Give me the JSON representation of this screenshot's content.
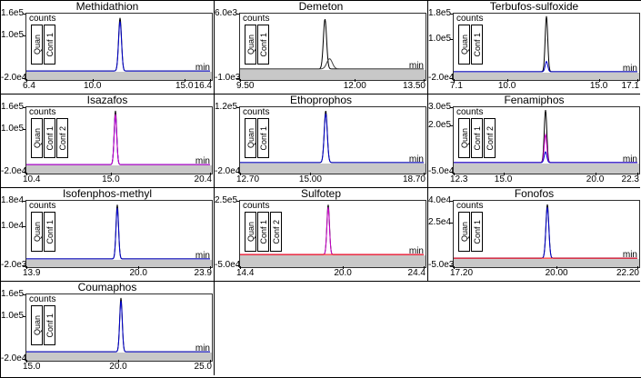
{
  "chart_data": [
    {
      "type": "line",
      "title": "Methidathion",
      "ylabel": "counts",
      "xlabel": "min",
      "x_range": [
        6.4,
        16.4
      ],
      "y_range": [
        -20000,
        160000
      ],
      "y_ticks": [
        {
          "label": "1.6e5",
          "value": 160000
        },
        {
          "label": "1.0e5",
          "value": 100000
        },
        {
          "label": "-2.0e4",
          "value": -20000
        }
      ],
      "x_ticks": [
        {
          "label": "6.4",
          "value": 6.4
        },
        {
          "label": "10.0",
          "value": 10.0
        },
        {
          "label": "15.0",
          "value": 15.0
        },
        {
          "label": "16.4",
          "value": 16.4
        }
      ],
      "signal_labels": [
        "Quan",
        "Conf 1"
      ],
      "traces": [
        {
          "name": "quan",
          "color": "#000000",
          "peak_rt": 11.5,
          "peak_height": 148000,
          "sigma": 0.08
        },
        {
          "name": "conf1",
          "color": "#0000cd",
          "peak_rt": 11.5,
          "peak_height": 138000,
          "sigma": 0.08
        }
      ]
    },
    {
      "type": "line",
      "title": "Demeton",
      "ylabel": "counts",
      "xlabel": "min",
      "x_range": [
        9.5,
        13.5
      ],
      "y_range": [
        -1000,
        6000
      ],
      "y_ticks": [
        {
          "label": "6.0e3",
          "value": 6000
        },
        {
          "label": "-1.0e3",
          "value": -1000
        }
      ],
      "x_ticks": [
        {
          "label": "9.50",
          "value": 9.5
        },
        {
          "label": "12.00",
          "value": 12.0
        },
        {
          "label": "13.50",
          "value": 13.5
        }
      ],
      "signal_labels": [
        "Quan",
        "Conf 1"
      ],
      "traces": [
        {
          "name": "quan",
          "color": "#000000",
          "peak_rt": 11.35,
          "peak_height": 5400,
          "sigma": 0.035
        },
        {
          "name": "conf1",
          "color": "#404040",
          "peak_rt": 11.45,
          "peak_height": 1100,
          "sigma": 0.06
        }
      ]
    },
    {
      "type": "line",
      "title": "Terbufos-sulfoxide",
      "ylabel": "counts",
      "xlabel": "min",
      "x_range": [
        7.1,
        17.1
      ],
      "y_range": [
        -20000,
        180000
      ],
      "y_ticks": [
        {
          "label": "1.8e5",
          "value": 180000
        },
        {
          "label": "1.0e5",
          "value": 100000
        },
        {
          "label": "-2.0e4",
          "value": -20000
        }
      ],
      "x_ticks": [
        {
          "label": "7.1",
          "value": 7.1
        },
        {
          "label": "10.0",
          "value": 10.0
        },
        {
          "label": "15.0",
          "value": 15.0
        },
        {
          "label": "17.1",
          "value": 17.1
        }
      ],
      "signal_labels": [
        "Quan",
        "Conf 1"
      ],
      "traces": [
        {
          "name": "quan",
          "color": "#000000",
          "peak_rt": 12.15,
          "peak_height": 172000,
          "sigma": 0.07
        },
        {
          "name": "conf1",
          "color": "#0000cd",
          "peak_rt": 12.15,
          "peak_height": 32000,
          "sigma": 0.07
        }
      ]
    },
    {
      "type": "line",
      "title": "Isazafos",
      "ylabel": "counts",
      "xlabel": "min",
      "x_range": [
        10.4,
        20.4
      ],
      "y_range": [
        -20000,
        160000
      ],
      "y_ticks": [
        {
          "label": "1.6e5",
          "value": 160000
        },
        {
          "label": "1.0e5",
          "value": 100000
        },
        {
          "label": "-2.0e4",
          "value": -20000
        }
      ],
      "x_ticks": [
        {
          "label": "10.4",
          "value": 10.4
        },
        {
          "label": "15.0",
          "value": 15.0
        },
        {
          "label": "20.4",
          "value": 20.4
        }
      ],
      "signal_labels": [
        "Quan",
        "Conf 1",
        "Conf 2"
      ],
      "traces": [
        {
          "name": "quan",
          "color": "#000000",
          "peak_rt": 15.25,
          "peak_height": 150000,
          "sigma": 0.07
        },
        {
          "name": "conf1",
          "color": "#0000cd",
          "peak_rt": 15.25,
          "peak_height": 138000,
          "sigma": 0.07
        },
        {
          "name": "conf2",
          "color": "#cc00cc",
          "peak_rt": 15.25,
          "peak_height": 141000,
          "sigma": 0.07
        }
      ]
    },
    {
      "type": "line",
      "title": "Ethoprophos",
      "ylabel": "counts",
      "xlabel": "min",
      "x_range": [
        12.7,
        18.7
      ],
      "y_range": [
        -20000,
        120000
      ],
      "y_ticks": [
        {
          "label": "1.2e5",
          "value": 120000
        },
        {
          "label": "-2.0e4",
          "value": -20000
        }
      ],
      "x_ticks": [
        {
          "label": "12.70",
          "value": 12.7
        },
        {
          "label": "15.00",
          "value": 15.0
        },
        {
          "label": "18.70",
          "value": 18.7
        }
      ],
      "signal_labels": [
        "Quan",
        "Conf 1"
      ],
      "traces": [
        {
          "name": "quan",
          "color": "#000000",
          "peak_rt": 15.5,
          "peak_height": 112000,
          "sigma": 0.05
        },
        {
          "name": "conf1",
          "color": "#0000cd",
          "peak_rt": 15.5,
          "peak_height": 106000,
          "sigma": 0.05
        }
      ]
    },
    {
      "type": "line",
      "title": "Fenamiphos",
      "ylabel": "counts",
      "xlabel": "min",
      "x_range": [
        12.3,
        22.3
      ],
      "y_range": [
        -50000,
        300000
      ],
      "y_ticks": [
        {
          "label": "3.0e5",
          "value": 300000
        },
        {
          "label": "2.0e5",
          "value": 200000
        },
        {
          "label": "-5.0e4",
          "value": -50000
        }
      ],
      "x_ticks": [
        {
          "label": "12.3",
          "value": 12.3
        },
        {
          "label": "15.0",
          "value": 15.0
        },
        {
          "label": "20.0",
          "value": 20.0
        },
        {
          "label": "22.3",
          "value": 22.3
        }
      ],
      "signal_labels": [
        "Quan",
        "Conf 1",
        "Conf 2"
      ],
      "traces": [
        {
          "name": "quan",
          "color": "#000000",
          "peak_rt": 17.3,
          "peak_height": 285000,
          "sigma": 0.07
        },
        {
          "name": "conf1",
          "color": "#cc00cc",
          "peak_rt": 17.3,
          "peak_height": 152000,
          "sigma": 0.07
        },
        {
          "name": "conf2",
          "color": "#0000cd",
          "peak_rt": 17.3,
          "peak_height": 58000,
          "sigma": 0.07
        }
      ]
    },
    {
      "type": "line",
      "title": "Isofenphos-methyl",
      "ylabel": "counts",
      "xlabel": "min",
      "x_range": [
        13.9,
        23.9
      ],
      "y_range": [
        -2000,
        18000
      ],
      "y_ticks": [
        {
          "label": "1.8e4",
          "value": 18000
        },
        {
          "label": "1.0e4",
          "value": 10000
        },
        {
          "label": "-2.0e3",
          "value": -2000
        }
      ],
      "x_ticks": [
        {
          "label": "13.9",
          "value": 13.9
        },
        {
          "label": "20.0",
          "value": 20.0
        },
        {
          "label": "23.9",
          "value": 23.9
        }
      ],
      "signal_labels": [
        "Quan",
        "Conf 1"
      ],
      "traces": [
        {
          "name": "quan",
          "color": "#000000",
          "peak_rt": 18.85,
          "peak_height": 16800,
          "sigma": 0.07
        },
        {
          "name": "conf1",
          "color": "#0000cd",
          "peak_rt": 18.85,
          "peak_height": 15800,
          "sigma": 0.07
        }
      ]
    },
    {
      "type": "line",
      "title": "Sulfotep",
      "ylabel": "counts",
      "xlabel": "min",
      "x_range": [
        14.4,
        24.4
      ],
      "y_range": [
        -50000,
        250000
      ],
      "y_ticks": [
        {
          "label": "2.5e5",
          "value": 250000
        },
        {
          "label": "-5.0e4",
          "value": -50000
        }
      ],
      "x_ticks": [
        {
          "label": "14.4",
          "value": 14.4
        },
        {
          "label": "20.0",
          "value": 20.0
        },
        {
          "label": "24.4",
          "value": 24.4
        }
      ],
      "signal_labels": [
        "Quan",
        "Conf 1",
        "Conf 2"
      ],
      "traces": [
        {
          "name": "quan",
          "color": "#000000",
          "peak_rt": 19.2,
          "peak_height": 232000,
          "sigma": 0.07
        },
        {
          "name": "conf1",
          "color": "#cc00cc",
          "peak_rt": 19.2,
          "peak_height": 220000,
          "sigma": 0.07
        },
        {
          "name": "baseline",
          "color": "#ff0000",
          "peak_rt": 19.2,
          "peak_height": 0,
          "sigma": 0.07
        }
      ]
    },
    {
      "type": "line",
      "title": "Fonofos",
      "ylabel": "counts",
      "xlabel": "min",
      "x_range": [
        17.2,
        22.2
      ],
      "y_range": [
        -5000,
        40000
      ],
      "y_ticks": [
        {
          "label": "4.0e4",
          "value": 40000
        },
        {
          "label": "2.5e4",
          "value": 25000
        },
        {
          "label": "-5.0e3",
          "value": -5000
        }
      ],
      "x_ticks": [
        {
          "label": "17.20",
          "value": 17.2
        },
        {
          "label": "20.00",
          "value": 20.0
        },
        {
          "label": "22.20",
          "value": 22.2
        }
      ],
      "signal_labels": [
        "Quan",
        "Conf 1"
      ],
      "traces": [
        {
          "name": "quan",
          "color": "#000000",
          "peak_rt": 19.75,
          "peak_height": 37500,
          "sigma": 0.04
        },
        {
          "name": "conf1",
          "color": "#0000cd",
          "peak_rt": 19.75,
          "peak_height": 35500,
          "sigma": 0.04
        },
        {
          "name": "baseline",
          "color": "#ff0000",
          "peak_rt": 19.75,
          "peak_height": 0,
          "sigma": 0.04
        }
      ]
    },
    {
      "type": "line",
      "title": "Coumaphos",
      "ylabel": "counts",
      "xlabel": "min",
      "x_range": [
        15.0,
        25.0
      ],
      "y_range": [
        -20000,
        160000
      ],
      "y_ticks": [
        {
          "label": "1.6e5",
          "value": 160000
        },
        {
          "label": "1.0e5",
          "value": 100000
        },
        {
          "label": "-2.0e4",
          "value": -20000
        }
      ],
      "x_ticks": [
        {
          "label": "15.0",
          "value": 15.0
        },
        {
          "label": "20.0",
          "value": 20.0
        },
        {
          "label": "25.0",
          "value": 25.0
        }
      ],
      "signal_labels": [
        "Quan",
        "Conf 1"
      ],
      "traces": [
        {
          "name": "quan",
          "color": "#000000",
          "peak_rt": 20.15,
          "peak_height": 150000,
          "sigma": 0.07
        },
        {
          "name": "conf1",
          "color": "#0000cd",
          "peak_rt": 20.15,
          "peak_height": 142000,
          "sigma": 0.07
        }
      ]
    }
  ]
}
